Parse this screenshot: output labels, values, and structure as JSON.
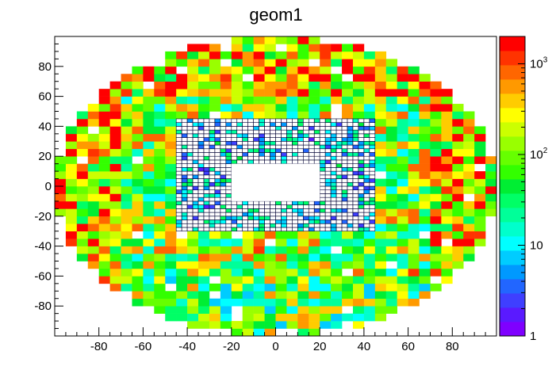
{
  "chart_data": {
    "type": "heatmap",
    "title": "geom1",
    "xlabel": "",
    "ylabel": "",
    "xlim": [
      -100,
      100
    ],
    "ylim": [
      -100,
      100
    ],
    "bin_size": 5,
    "log_z": true,
    "zlim": [
      1,
      2000
    ],
    "x_ticks": [
      -80,
      -60,
      -40,
      -20,
      0,
      20,
      40,
      60,
      80
    ],
    "y_ticks": [
      -80,
      -60,
      -40,
      -20,
      0,
      20,
      40,
      60,
      80
    ],
    "z_tick_labels": [
      {
        "base": "1",
        "exp": "",
        "value": 1
      },
      {
        "base": "10",
        "exp": "",
        "value": 10
      },
      {
        "base": "10",
        "exp": "2",
        "value": 100
      },
      {
        "base": "10",
        "exp": "3",
        "value": 1000
      }
    ],
    "inner_region": {
      "x": [
        -45,
        45
      ],
      "y": [
        -30,
        45
      ],
      "bin_size": 2.5
    },
    "hole": {
      "x": [
        -20,
        20
      ],
      "y": [
        -10,
        15
      ]
    },
    "outer_radius": 100,
    "palette_colors": [
      "#7f00ff",
      "#5a1aff",
      "#3f3fff",
      "#2266ff",
      "#0099ff",
      "#00ccff",
      "#00ffff",
      "#00ffcc",
      "#00ff99",
      "#00ff66",
      "#00ee33",
      "#33ff00",
      "#66ff00",
      "#99ff00",
      "#ccff00",
      "#ffff00",
      "#ffcc00",
      "#ff9900",
      "#ff6600",
      "#ff3300",
      "#ff0000"
    ]
  }
}
